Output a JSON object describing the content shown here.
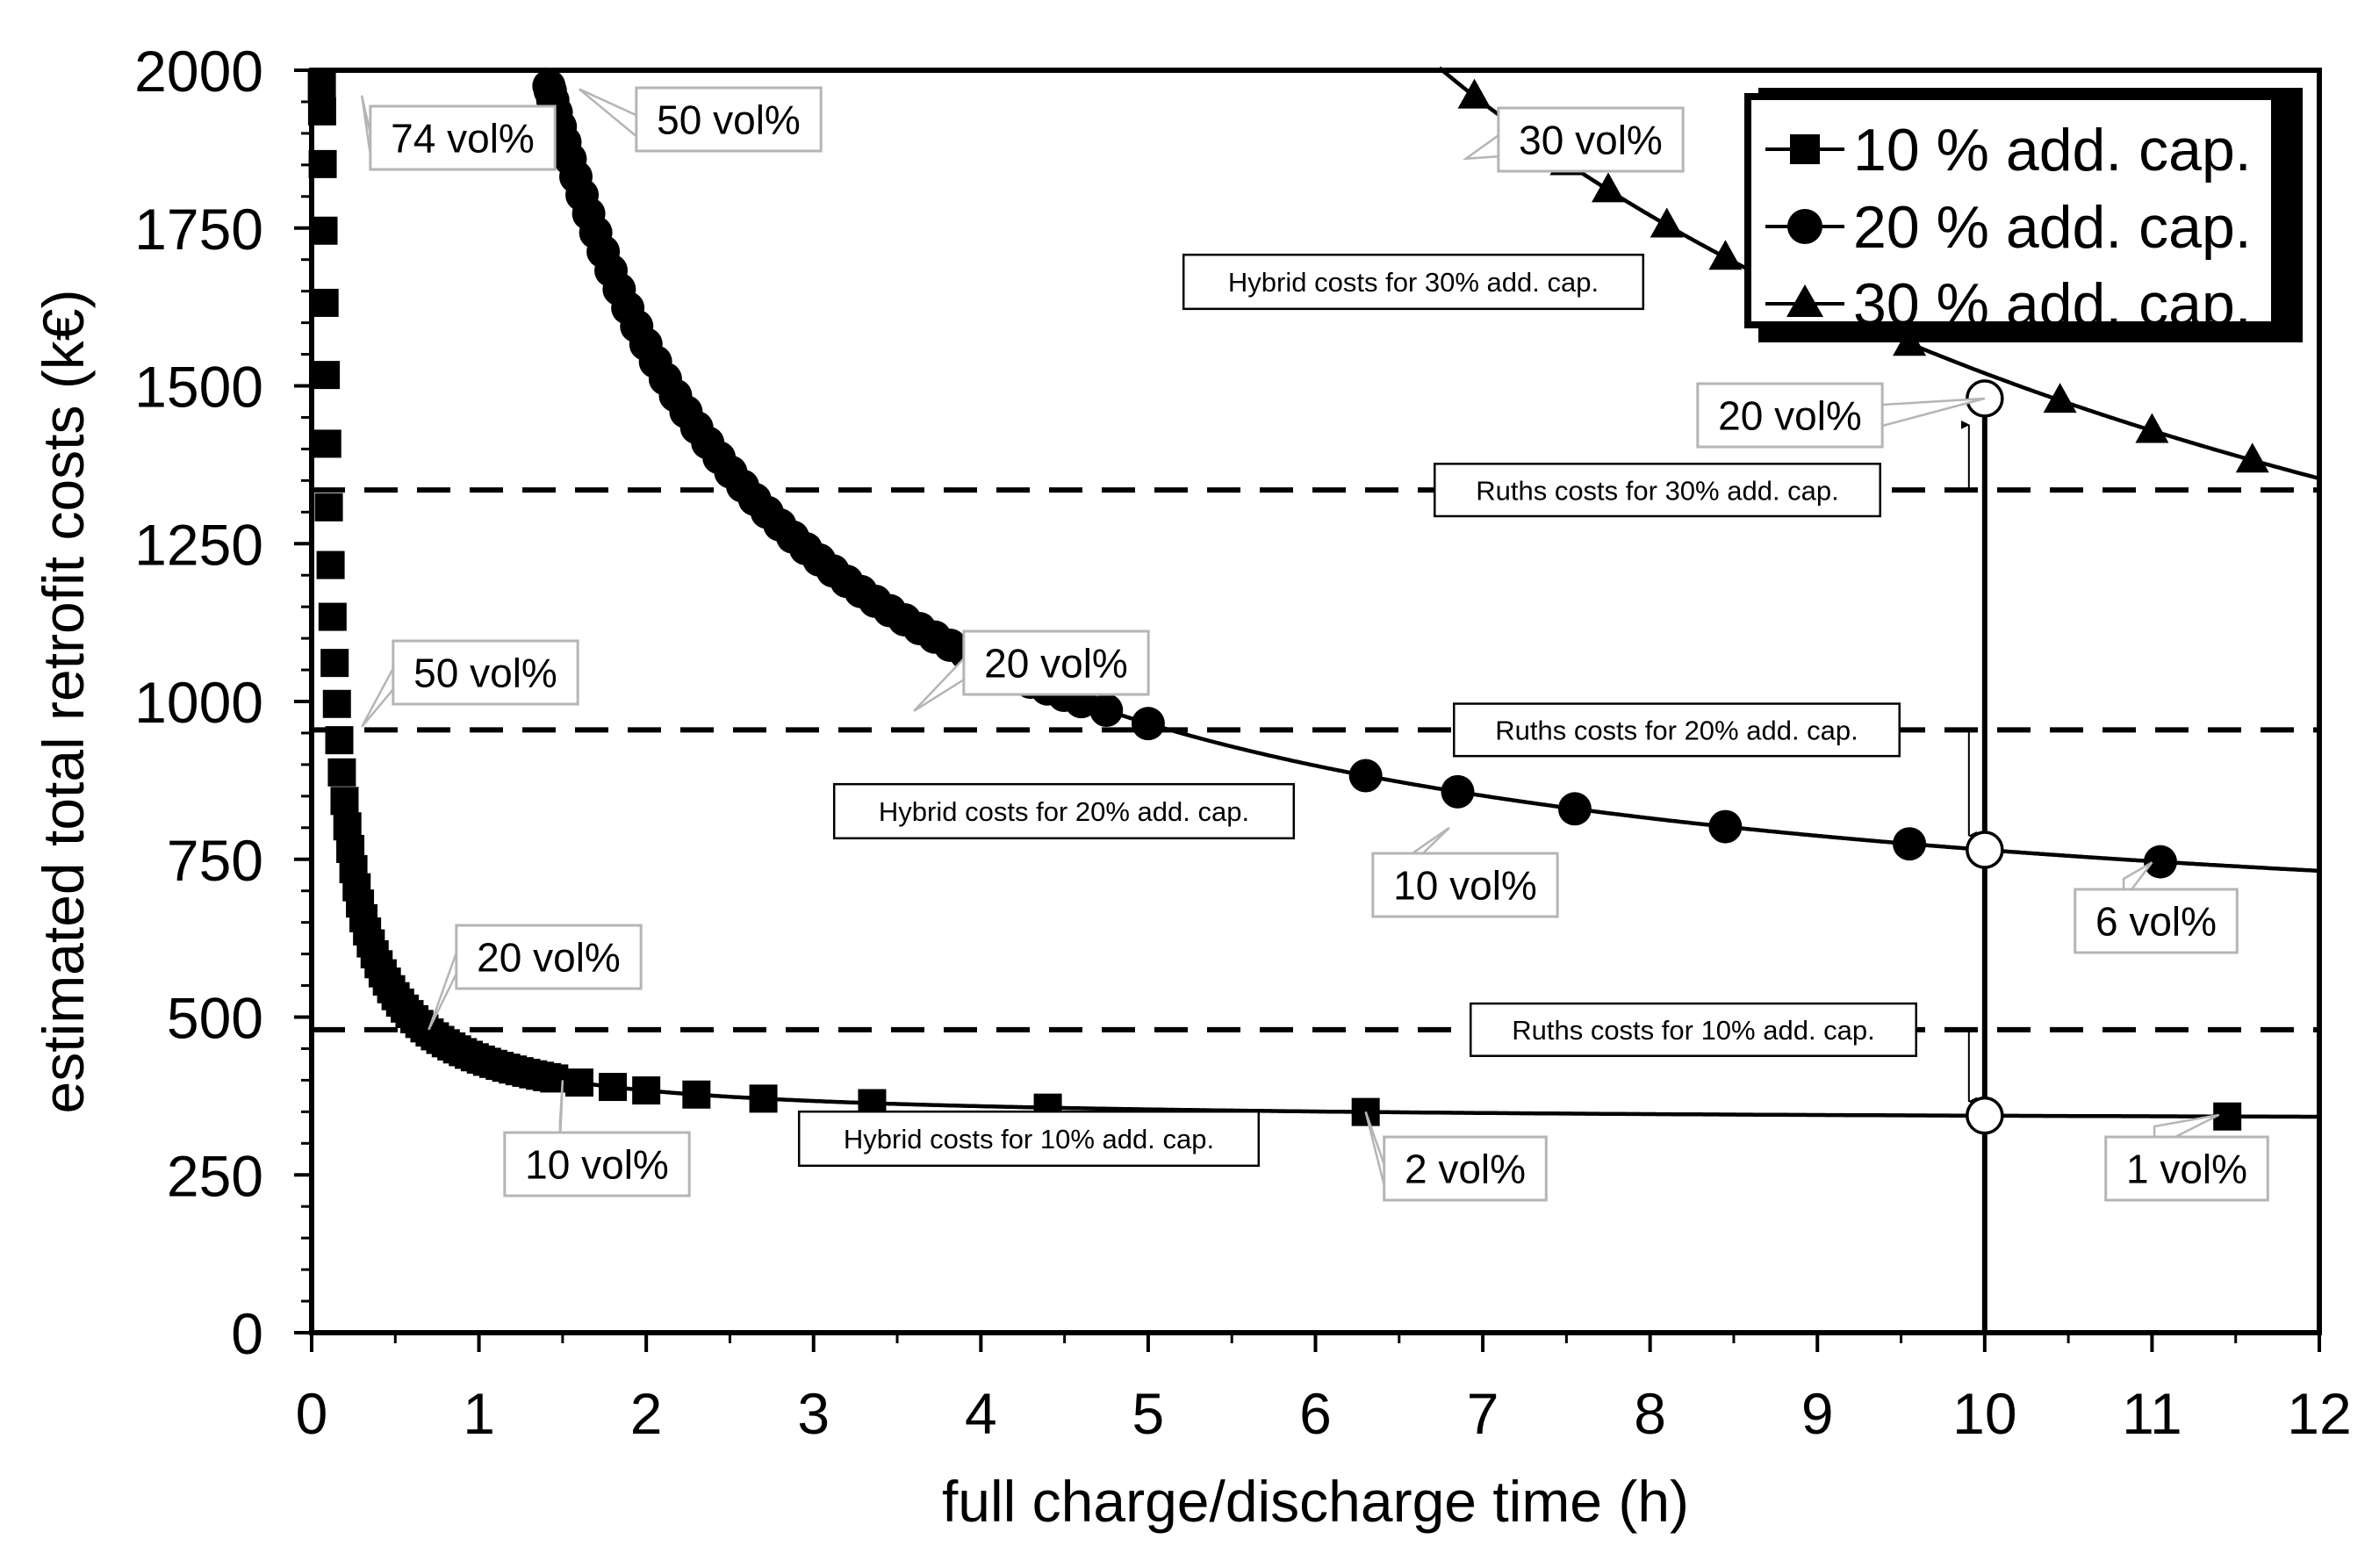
{
  "chart_data": {
    "type": "scatter",
    "xlabel": "full charge/discharge time (h)",
    "ylabel": "estimated total retrofit costs (k€)",
    "xlim": [
      0,
      12
    ],
    "ylim": [
      0,
      2000
    ],
    "x_ticks": [
      0,
      1,
      2,
      3,
      4,
      5,
      6,
      7,
      8,
      9,
      10,
      11,
      12
    ],
    "y_ticks": [
      0,
      250,
      500,
      750,
      1000,
      1250,
      1500,
      1750,
      2000
    ],
    "series": [
      {
        "name": "10 % add. cap.",
        "marker": "square",
        "curve_constant": 100,
        "curve_offset": 333.8,
        "ruths_cost": 480
      },
      {
        "name": "20 % add. cap.",
        "marker": "circle",
        "curve_constant": 2000,
        "curve_offset": 565,
        "ruths_cost": 955
      },
      {
        "name": "30 % add. cap.",
        "marker": "triangle",
        "curve_constant": 10000,
        "curve_offset": 520,
        "ruths_cost": 1335
      }
    ],
    "legend": {
      "position": "top-right",
      "entries": [
        "10 % add. cap.",
        "20 % add. cap.",
        "30 % add. cap."
      ]
    },
    "reference_lines": [
      {
        "label": "Ruths costs for 10% add. cap.",
        "y": 480
      },
      {
        "label": "Ruths costs for 20% add. cap.",
        "y": 955
      },
      {
        "label": "Ruths costs for 30% add. cap.",
        "y": 1335
      }
    ],
    "vertical_line": {
      "x": 10
    },
    "highlight_points": [
      {
        "x": 10,
        "y": 344
      },
      {
        "x": 10,
        "y": 765
      },
      {
        "x": 10,
        "y": 1480
      }
    ],
    "series_labels": [
      {
        "label": "Hybrid costs for 10% add. cap.",
        "series": "10 % add. cap."
      },
      {
        "label": "Hybrid costs for 20% add. cap.",
        "series": "20 % add. cap."
      },
      {
        "label": "Hybrid costs for 30% add. cap.",
        "series": "30 % add. cap."
      }
    ],
    "annotations": [
      {
        "label": "74 vol%",
        "x": 0.3,
        "y": 1960
      },
      {
        "label": "50 vol%",
        "x": 0.3,
        "y": 960
      },
      {
        "label": "20 vol%",
        "x": 0.7,
        "y": 480
      },
      {
        "label": "10 vol%",
        "x": 1.5,
        "y": 400
      },
      {
        "label": "2 vol%",
        "x": 6.3,
        "y": 350
      },
      {
        "label": "1 vol%",
        "x": 11.4,
        "y": 345
      },
      {
        "label": "50 vol%",
        "x": 1.6,
        "y": 1970
      },
      {
        "label": "20 vol%",
        "x": 3.6,
        "y": 985
      },
      {
        "label": "10 vol%",
        "x": 6.8,
        "y": 800
      },
      {
        "label": "6 vol%",
        "x": 11.0,
        "y": 745
      },
      {
        "label": "30 vol%",
        "x": 6.9,
        "y": 1860
      },
      {
        "label": "20 vol%",
        "x": 10.0,
        "y": 1480
      }
    ],
    "grid": false
  }
}
